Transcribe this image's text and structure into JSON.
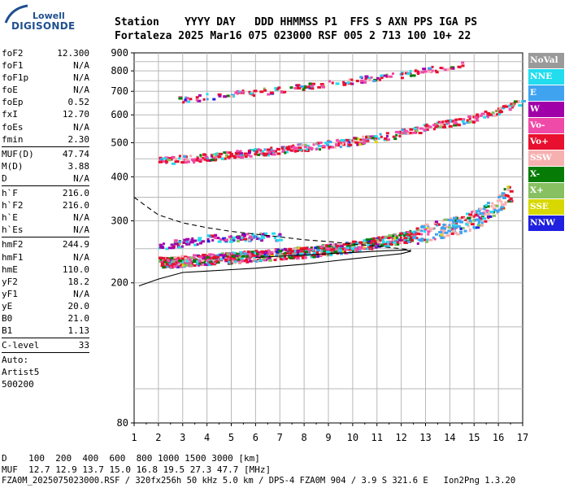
{
  "logo": {
    "top": "Lowell",
    "main": "DIGISONDE"
  },
  "header": {
    "line1": "Station    YYYY DAY   DDD HHMMSS P1  FFS S AXN PPS IGA PS",
    "line2": "Fortaleza 2025 Mar16 075 023000 RSF 005 2 713 100 10+ 22"
  },
  "params": [
    {
      "k": "foF2",
      "v": "12.300"
    },
    {
      "k": "foF1",
      "v": "N/A"
    },
    {
      "k": "foF1p",
      "v": "N/A"
    },
    {
      "k": "foE",
      "v": "N/A"
    },
    {
      "k": "foEp",
      "v": "0.52"
    },
    {
      "k": "fxI",
      "v": "12.70"
    },
    {
      "k": "foEs",
      "v": "N/A"
    },
    {
      "k": "fmin",
      "v": "2.30"
    },
    {
      "k": "MUF(D)",
      "v": "47.74"
    },
    {
      "k": "M(D)",
      "v": "3.88"
    },
    {
      "k": "D",
      "v": "N/A"
    },
    {
      "k": "h`F",
      "v": "216.0"
    },
    {
      "k": "h`F2",
      "v": "216.0"
    },
    {
      "k": "h`E",
      "v": "N/A"
    },
    {
      "k": "h`Es",
      "v": "N/A"
    },
    {
      "k": "hmF2",
      "v": "244.9"
    },
    {
      "k": "hmF1",
      "v": "N/A"
    },
    {
      "k": "hmE",
      "v": "110.0"
    },
    {
      "k": "yF2",
      "v": "18.2"
    },
    {
      "k": "yF1",
      "v": "N/A"
    },
    {
      "k": "yE",
      "v": "20.0"
    },
    {
      "k": "B0",
      "v": "21.0"
    },
    {
      "k": "B1",
      "v": "1.13"
    },
    {
      "k": "C-level",
      "v": "33"
    }
  ],
  "misc": [
    "Auto:",
    "Artist5",
    "500200"
  ],
  "legend": [
    {
      "label": "NoVal",
      "color": "#9a9a9a"
    },
    {
      "label": "NNE",
      "color": "#22ddee"
    },
    {
      "label": "E",
      "color": "#3fa3f0"
    },
    {
      "label": "W",
      "color": "#a000a8"
    },
    {
      "label": "Vo-",
      "color": "#f04aa8"
    },
    {
      "label": "Vo+",
      "color": "#e8102e"
    },
    {
      "label": "SSW",
      "color": "#f6b0b0"
    },
    {
      "label": "X-",
      "color": "#067c06"
    },
    {
      "label": "X+",
      "color": "#86c060"
    },
    {
      "label": "SSE",
      "color": "#d8d800"
    },
    {
      "label": "NNW",
      "color": "#2020e0"
    }
  ],
  "bottom": {
    "line1": "D    100  200  400  600  800 1000 1500 3000 [km]",
    "line2": "MUF  12.7 12.9 13.7 15.0 16.8 19.5 27.3 47.7 [MHz]",
    "line3": "FZA0M_2025075023000.RSF / 320fx256h 50 kHz 5.0 km / DPS-4 FZA0M 904 / 3.9 S 321.6 E   Ion2Png 1.3.20"
  },
  "chart_data": {
    "type": "scatter",
    "title": "",
    "xlabel": "",
    "ylabel": "",
    "xlim": [
      1,
      17
    ],
    "ylim": [
      80,
      900
    ],
    "y_scale": "log",
    "x_ticks": [
      1,
      2,
      3,
      4,
      5,
      6,
      7,
      8,
      9,
      10,
      11,
      12,
      13,
      14,
      15,
      16,
      17
    ],
    "y_ticks": [
      80,
      200,
      300,
      400,
      500,
      600,
      700,
      800,
      900
    ],
    "grid": true,
    "traces": {
      "o_trace": {
        "x": [
          2.0,
          3.0,
          4.0,
          5.0,
          6.0,
          7.0,
          8.0,
          9.0,
          10.0,
          11.0,
          12.0,
          12.5,
          13.0,
          14.0,
          15.0,
          15.5,
          16.0,
          16.5
        ],
        "y": [
          230,
          232,
          235,
          237,
          240,
          243,
          246,
          250,
          255,
          262,
          270,
          275,
          280,
          290,
          305,
          320,
          340,
          365
        ]
      },
      "second_hop": {
        "x": [
          2.0,
          3.0,
          4.0,
          5.0,
          6.0,
          7.0,
          8.0,
          9.0,
          10.0,
          11.0,
          12.0,
          13.0,
          14.0,
          15.0,
          16.0,
          17.0
        ],
        "y": [
          445,
          452,
          458,
          465,
          472,
          480,
          488,
          497,
          508,
          520,
          535,
          555,
          575,
          590,
          620,
          660
        ]
      },
      "third_hop": {
        "x": [
          2.8,
          3.5,
          4.0,
          5.0,
          6.0,
          7.0,
          8.0,
          9.0,
          10.0,
          11.0,
          12.0,
          13.0,
          14.0,
          14.5
        ],
        "y": [
          665,
          672,
          680,
          690,
          700,
          712,
          725,
          740,
          755,
          770,
          785,
          805,
          830,
          845
        ]
      },
      "w_trace": {
        "x": [
          2.0,
          3.0,
          4.0,
          5.0,
          6.0,
          7.0
        ],
        "y": [
          255,
          262,
          268,
          270,
          272,
          272
        ]
      }
    },
    "profile_upper_dashed": {
      "x": [
        1.0,
        1.5,
        2.0,
        3.0,
        4.0,
        5.0,
        6.0,
        7.0,
        8.0,
        9.0,
        10.0,
        11.0,
        12.0,
        12.4
      ],
      "y": [
        350,
        330,
        312,
        296,
        287,
        280,
        275,
        270,
        265,
        262,
        258,
        254,
        250,
        248
      ]
    },
    "profile_lower_solid": {
      "x": [
        1.2,
        2.0,
        3.0,
        4.0,
        5.0,
        6.0,
        7.0,
        8.0,
        9.0,
        10.0,
        11.0,
        12.0,
        12.4,
        12.2,
        11.0,
        10.0,
        9.0,
        8.0,
        7.0,
        6.0
      ],
      "y": [
        196,
        205,
        214,
        216,
        218,
        220,
        223,
        226,
        230,
        234,
        238,
        242,
        246,
        248,
        246,
        244,
        242,
        240,
        238,
        236
      ]
    }
  }
}
